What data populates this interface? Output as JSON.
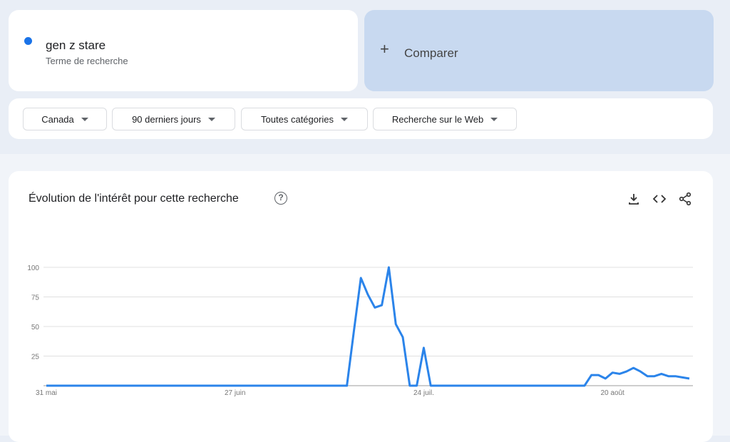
{
  "search_term": {
    "title": "gen z stare",
    "subtitle": "Terme de recherche",
    "color": "#1a73e8"
  },
  "compare": {
    "icon": "plus-icon",
    "label": "Comparer"
  },
  "filters": [
    {
      "label": "Canada"
    },
    {
      "label": "90 derniers jours"
    },
    {
      "label": "Toutes catégories"
    },
    {
      "label": "Recherche sur le Web"
    }
  ],
  "chart_card": {
    "title": "Évolution de l'intérêt pour cette recherche",
    "help": "?",
    "actions": [
      "download-icon",
      "embed-icon",
      "share-icon"
    ]
  },
  "chart_data": {
    "type": "line",
    "title": "",
    "xlabel": "",
    "ylabel": "",
    "ylim": [
      0,
      100
    ],
    "yticks": [
      25,
      50,
      75,
      100
    ],
    "xtick_labels": [
      {
        "label": "31 mai",
        "at": "05-31"
      },
      {
        "label": "27 juin",
        "at": "06-27"
      },
      {
        "label": "24 juil.",
        "at": "07-24"
      },
      {
        "label": "20 août",
        "at": "08-20"
      }
    ],
    "grid": true,
    "color": "#2b84ea",
    "x": [
      "05-31",
      "06-01",
      "06-02",
      "06-03",
      "06-04",
      "06-05",
      "06-06",
      "06-07",
      "06-08",
      "06-09",
      "06-10",
      "06-11",
      "06-12",
      "06-13",
      "06-14",
      "06-15",
      "06-16",
      "06-17",
      "06-18",
      "06-19",
      "06-20",
      "06-21",
      "06-22",
      "06-23",
      "06-24",
      "06-25",
      "06-26",
      "06-27",
      "06-28",
      "06-29",
      "06-30",
      "07-01",
      "07-02",
      "07-03",
      "07-04",
      "07-05",
      "07-06",
      "07-07",
      "07-08",
      "07-09",
      "07-10",
      "07-11",
      "07-12",
      "07-13",
      "07-14",
      "07-15",
      "07-16",
      "07-17",
      "07-18",
      "07-19",
      "07-20",
      "07-21",
      "07-22",
      "07-23",
      "07-24",
      "07-25",
      "07-26",
      "07-27",
      "07-28",
      "07-29",
      "07-30",
      "07-31",
      "08-01",
      "08-02",
      "08-03",
      "08-04",
      "08-05",
      "08-06",
      "08-07",
      "08-08",
      "08-09",
      "08-10",
      "08-11",
      "08-12",
      "08-13",
      "08-14",
      "08-15",
      "08-16",
      "08-17",
      "08-18",
      "08-19",
      "08-20",
      "08-21",
      "08-22",
      "08-23",
      "08-24",
      "08-25",
      "08-26",
      "08-27",
      "08-28",
      "08-29",
      "08-30",
      "08-31"
    ],
    "values": [
      0,
      0,
      0,
      0,
      0,
      0,
      0,
      0,
      0,
      0,
      0,
      0,
      0,
      0,
      0,
      0,
      0,
      0,
      0,
      0,
      0,
      0,
      0,
      0,
      0,
      0,
      0,
      0,
      0,
      0,
      0,
      0,
      0,
      0,
      0,
      0,
      0,
      0,
      0,
      0,
      0,
      0,
      0,
      0,
      46,
      91,
      77,
      66,
      68,
      100,
      52,
      41,
      0,
      0,
      32,
      0,
      0,
      0,
      0,
      0,
      0,
      0,
      0,
      0,
      0,
      0,
      0,
      0,
      0,
      0,
      0,
      0,
      0,
      0,
      0,
      0,
      0,
      0,
      9,
      9,
      6,
      11,
      10,
      12,
      15,
      12,
      8,
      8,
      10,
      8,
      8,
      7,
      6
    ]
  }
}
